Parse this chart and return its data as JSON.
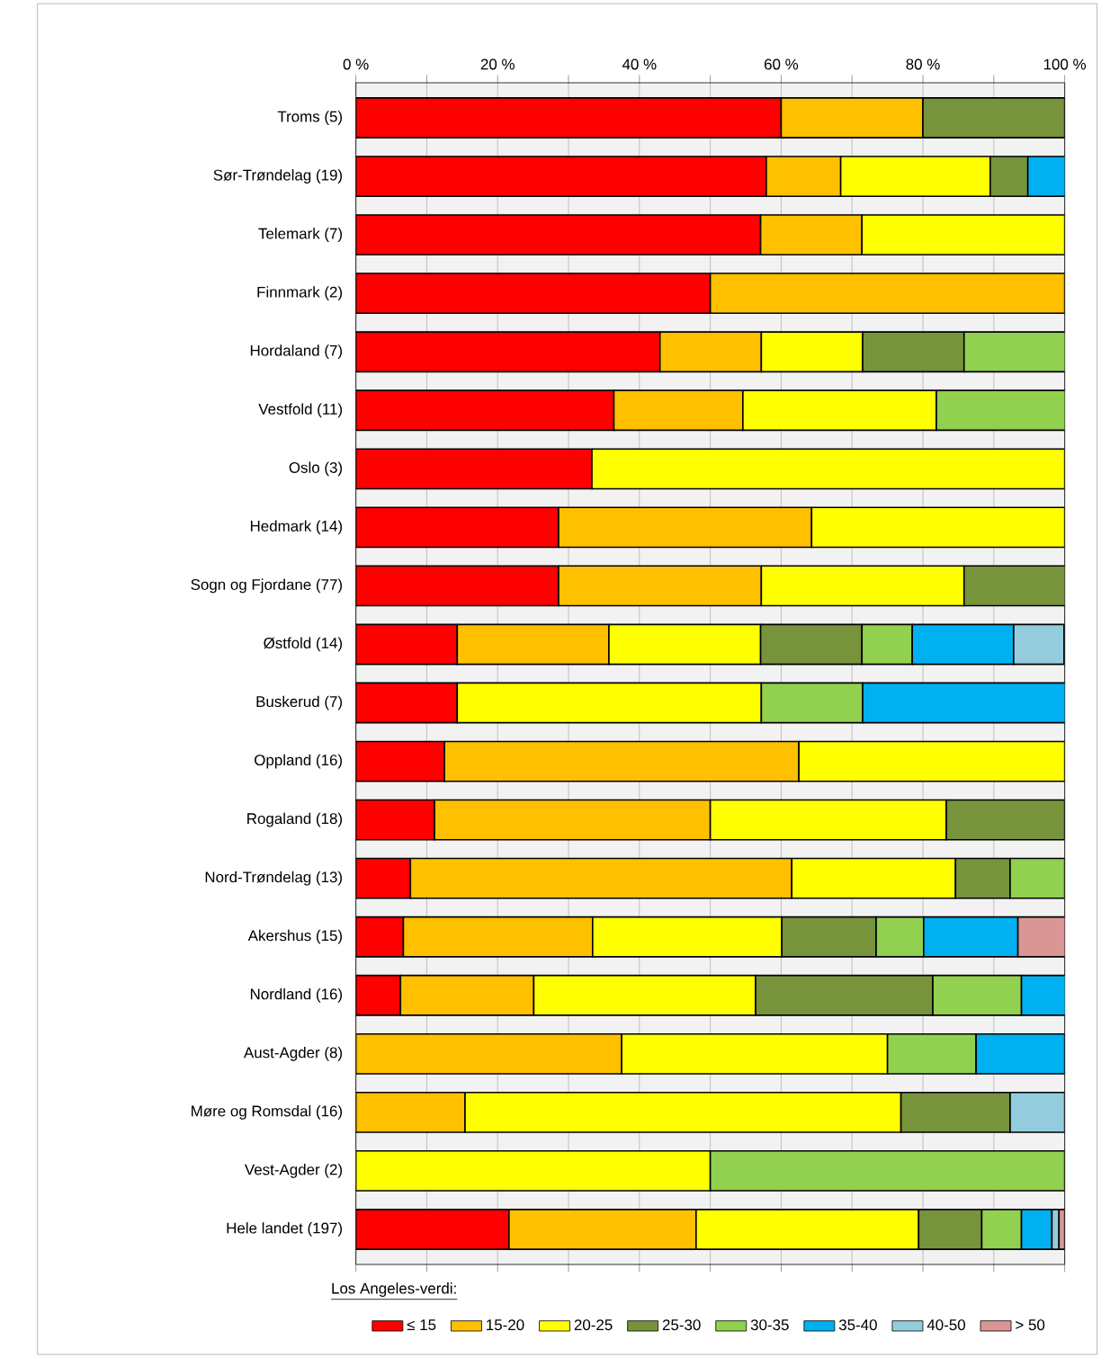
{
  "chart_data": {
    "type": "bar",
    "orientation": "horizontal",
    "stacked": true,
    "legend_title": "Los Angeles-verdi:",
    "legend": "bottom",
    "grid": "x",
    "categories": [
      "Troms (5)",
      "Sør-Trøndelag (19)",
      "Telemark (7)",
      "Finnmark (2)",
      "Hordaland (7)",
      "Vestfold (11)",
      "Oslo (3)",
      "Hedmark (14)",
      "Sogn og Fjordane (77)",
      "Østfold (14)",
      "Buskerud (7)",
      "Oppland (16)",
      "Rogaland (18)",
      "Nord-Trøndelag (13)",
      "Akershus (15)",
      "Nordland (16)",
      "Aust-Agder (8)",
      "Møre og Romsdal (16)",
      "Vest-Agder (2)",
      "Hele landet (197)"
    ],
    "xlim": [
      0,
      100
    ],
    "xticks": [
      {
        "value": 0,
        "label": "0 %"
      },
      {
        "value": 10,
        "label": null
      },
      {
        "value": 20,
        "label": "20 %"
      },
      {
        "value": 30,
        "label": null
      },
      {
        "value": 40,
        "label": "40 %"
      },
      {
        "value": 50,
        "label": null
      },
      {
        "value": 60,
        "label": "60 %"
      },
      {
        "value": 70,
        "label": null
      },
      {
        "value": 80,
        "label": "80 %"
      },
      {
        "value": 90,
        "label": null
      },
      {
        "value": 100,
        "label": "100 %"
      }
    ],
    "series": [
      {
        "name": "≤ 15",
        "color": "#ff0000",
        "values": [
          60,
          57.9,
          57.1,
          50,
          42.9,
          36.4,
          33.3,
          28.6,
          28.6,
          14.3,
          14.3,
          12.5,
          11.1,
          7.7,
          6.7,
          6.3,
          null,
          null,
          null,
          21.6
        ]
      },
      {
        "name": "15-20",
        "color": "#ffc000",
        "values": [
          20,
          10.5,
          14.3,
          50,
          14.3,
          18.2,
          null,
          35.7,
          28.6,
          21.4,
          null,
          50,
          38.9,
          53.8,
          26.7,
          18.8,
          37.5,
          15.4,
          null,
          26.4
        ]
      },
      {
        "name": "20-25",
        "color": "#ffff00",
        "values": [
          null,
          21.1,
          28.6,
          null,
          14.3,
          27.3,
          66.7,
          35.7,
          28.6,
          21.4,
          42.9,
          37.5,
          33.3,
          23.1,
          26.7,
          31.3,
          37.5,
          61.5,
          50,
          31.4
        ]
      },
      {
        "name": "25-30",
        "color": "#77933c",
        "values": [
          20,
          5.3,
          null,
          null,
          14.3,
          null,
          null,
          null,
          14.3,
          14.3,
          null,
          null,
          16.7,
          7.7,
          13.3,
          25,
          null,
          15.4,
          null,
          8.9
        ]
      },
      {
        "name": "30-35",
        "color": "#92d050",
        "values": [
          null,
          null,
          null,
          null,
          14.3,
          18.2,
          null,
          null,
          null,
          7.1,
          14.3,
          null,
          null,
          7.7,
          6.7,
          12.5,
          12.5,
          null,
          50,
          5.6
        ]
      },
      {
        "name": "35-40",
        "color": "#00b0f0",
        "values": [
          null,
          5.3,
          null,
          null,
          null,
          null,
          null,
          null,
          null,
          14.3,
          28.6,
          null,
          null,
          null,
          13.3,
          6.3,
          12.5,
          null,
          null,
          4.3
        ]
      },
      {
        "name": "40-50",
        "color": "#93cddd",
        "values": [
          null,
          null,
          null,
          null,
          null,
          null,
          null,
          null,
          null,
          7.1,
          null,
          null,
          null,
          null,
          null,
          null,
          null,
          7.7,
          null,
          1.0
        ]
      },
      {
        "name": "> 50",
        "color": "#d99694",
        "values": [
          null,
          null,
          null,
          null,
          null,
          null,
          null,
          null,
          null,
          null,
          null,
          null,
          null,
          null,
          6.7,
          null,
          null,
          null,
          null,
          0.8
        ]
      }
    ]
  }
}
